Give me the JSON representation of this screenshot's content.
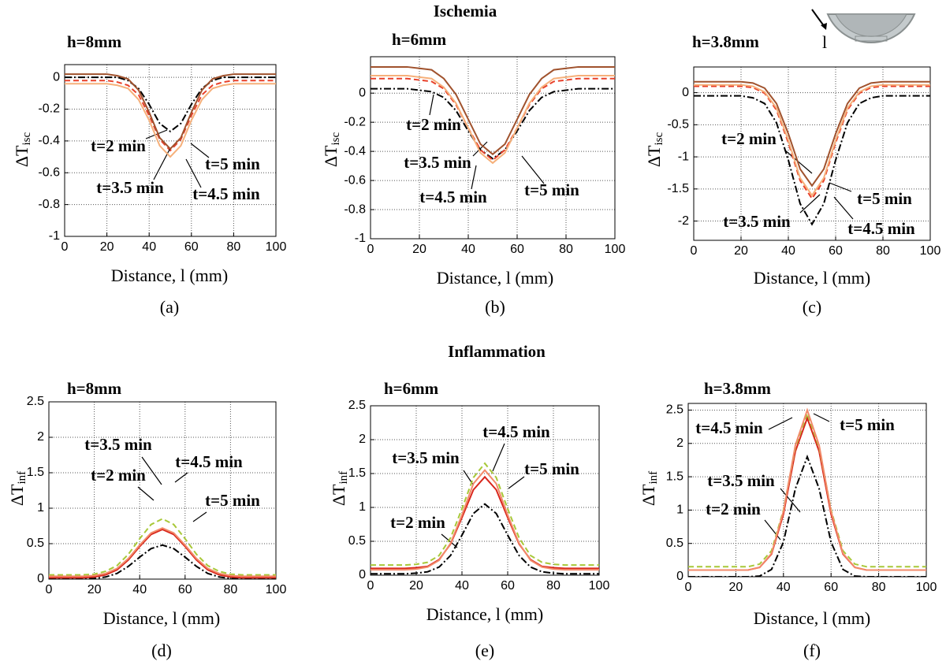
{
  "figure": {
    "titles": [
      "Ischemia",
      "Inflammation"
    ],
    "icon_label": "l"
  },
  "chart_data": [
    {
      "type": "line",
      "title": "h=8mm",
      "caption": "(a)",
      "xlabel": "Distance, l (mm)",
      "ylabel": "ΔT",
      "ylabel_subscript": "isc",
      "x": [
        0,
        5,
        10,
        15,
        20,
        25,
        30,
        35,
        40,
        45,
        50,
        55,
        60,
        65,
        70,
        75,
        80,
        85,
        90,
        95,
        100
      ],
      "xlim": [
        0,
        100
      ],
      "xticks": [
        0,
        20,
        40,
        60,
        80,
        100
      ],
      "ylim": [
        -1,
        0.08
      ],
      "yticks": [
        -1,
        -0.8,
        -0.6,
        -0.4,
        -0.2,
        0
      ],
      "grid": true,
      "series": [
        {
          "name": "t=2 min",
          "color": "#000000",
          "dash": "dashdot",
          "values": [
            0,
            0,
            0,
            0,
            0,
            0,
            -0.02,
            -0.07,
            -0.17,
            -0.29,
            -0.34,
            -0.29,
            -0.17,
            -0.07,
            -0.02,
            0,
            0,
            0,
            0,
            0,
            0
          ]
        },
        {
          "name": "t=3.5 min",
          "color": "#e8402a",
          "dash": "dashed",
          "values": [
            -0.02,
            -0.02,
            -0.02,
            -0.02,
            -0.02,
            -0.03,
            -0.05,
            -0.11,
            -0.24,
            -0.39,
            -0.46,
            -0.39,
            -0.24,
            -0.11,
            -0.05,
            -0.03,
            -0.02,
            -0.02,
            -0.02,
            -0.02,
            -0.02
          ]
        },
        {
          "name": "t=4.5 min",
          "color": "#f6b07a",
          "dash": "solid",
          "values": [
            -0.04,
            -0.04,
            -0.04,
            -0.04,
            -0.04,
            -0.05,
            -0.07,
            -0.14,
            -0.27,
            -0.43,
            -0.5,
            -0.43,
            -0.27,
            -0.14,
            -0.07,
            -0.05,
            -0.04,
            -0.04,
            -0.04,
            -0.04,
            -0.04
          ]
        },
        {
          "name": "t=5 min",
          "color": "#a0522d",
          "dash": "solid",
          "values": [
            0.02,
            0.02,
            0.02,
            0.02,
            0.02,
            0.01,
            -0.01,
            -0.08,
            -0.22,
            -0.38,
            -0.45,
            -0.38,
            -0.22,
            -0.08,
            -0.01,
            0.01,
            0.02,
            0.02,
            0.02,
            0.02,
            0.02
          ]
        }
      ]
    },
    {
      "type": "line",
      "title": "h=6mm",
      "caption": "(b)",
      "xlabel": "Distance, l (mm)",
      "ylabel": "ΔT",
      "ylabel_subscript": "isc",
      "x": [
        0,
        5,
        10,
        15,
        20,
        25,
        30,
        35,
        40,
        45,
        50,
        55,
        60,
        65,
        70,
        75,
        80,
        85,
        90,
        95,
        100
      ],
      "xlim": [
        0,
        100
      ],
      "xticks": [
        0,
        20,
        40,
        60,
        80,
        100
      ],
      "ylim": [
        -1,
        0.25
      ],
      "yticks": [
        -1,
        -0.8,
        -0.6,
        -0.4,
        -0.2,
        0
      ],
      "grid": true,
      "series": [
        {
          "name": "t=2 min",
          "color": "#000000",
          "dash": "dashdot",
          "values": [
            0.03,
            0.03,
            0.03,
            0.03,
            0.02,
            0.01,
            -0.03,
            -0.12,
            -0.26,
            -0.39,
            -0.45,
            -0.39,
            -0.26,
            -0.12,
            -0.03,
            0.01,
            0.02,
            0.03,
            0.03,
            0.03,
            0.03
          ]
        },
        {
          "name": "t=3.5 min",
          "color": "#e8402a",
          "dash": "dashed",
          "values": [
            0.1,
            0.1,
            0.1,
            0.1,
            0.09,
            0.08,
            0.03,
            -0.08,
            -0.24,
            -0.39,
            -0.46,
            -0.39,
            -0.24,
            -0.08,
            0.03,
            0.08,
            0.09,
            0.1,
            0.1,
            0.1,
            0.1
          ]
        },
        {
          "name": "t=4.5 min",
          "color": "#f6b07a",
          "dash": "solid",
          "values": [
            0.12,
            0.12,
            0.12,
            0.12,
            0.11,
            0.1,
            0.04,
            -0.07,
            -0.24,
            -0.41,
            -0.48,
            -0.41,
            -0.24,
            -0.07,
            0.04,
            0.1,
            0.11,
            0.12,
            0.12,
            0.12,
            0.12
          ]
        },
        {
          "name": "t=5 min",
          "color": "#a0522d",
          "dash": "solid",
          "values": [
            0.18,
            0.18,
            0.18,
            0.18,
            0.17,
            0.16,
            0.1,
            -0.01,
            -0.18,
            -0.35,
            -0.42,
            -0.35,
            -0.18,
            -0.01,
            0.1,
            0.16,
            0.17,
            0.18,
            0.18,
            0.18,
            0.18
          ]
        }
      ]
    },
    {
      "type": "line",
      "title": "h=3.8mm",
      "caption": "(c)",
      "xlabel": "Distance, l (mm)",
      "ylabel": "ΔT",
      "ylabel_subscript": "isc",
      "x": [
        0,
        5,
        10,
        15,
        20,
        25,
        30,
        35,
        40,
        45,
        50,
        55,
        60,
        65,
        70,
        75,
        80,
        85,
        90,
        95,
        100
      ],
      "xlim": [
        0,
        100
      ],
      "xticks": [
        0,
        20,
        40,
        60,
        80,
        100
      ],
      "ylim": [
        -2.3,
        0.4
      ],
      "yticks": [
        -2,
        -1.5,
        -1,
        -0.5,
        0
      ],
      "grid": true,
      "series": [
        {
          "name": "t=2 min",
          "color": "#000000",
          "dash": "dashdot",
          "values": [
            -0.05,
            -0.05,
            -0.05,
            -0.05,
            -0.05,
            -0.08,
            -0.17,
            -0.47,
            -1.05,
            -1.73,
            -2.05,
            -1.73,
            -1.05,
            -0.47,
            -0.17,
            -0.08,
            -0.05,
            -0.05,
            -0.05,
            -0.05,
            -0.05
          ]
        },
        {
          "name": "t=3.5 min",
          "color": "#e8402a",
          "dash": "dashed",
          "values": [
            0.1,
            0.1,
            0.1,
            0.1,
            0.1,
            0.08,
            -0.01,
            -0.27,
            -0.78,
            -1.37,
            -1.65,
            -1.37,
            -0.78,
            -0.27,
            -0.01,
            0.08,
            0.1,
            0.1,
            0.1,
            0.1,
            0.1
          ]
        },
        {
          "name": "t=4.5 min",
          "color": "#f6b07a",
          "dash": "solid",
          "values": [
            0.12,
            0.12,
            0.12,
            0.12,
            0.12,
            0.1,
            0.01,
            -0.24,
            -0.74,
            -1.33,
            -1.6,
            -1.33,
            -0.74,
            -0.24,
            0.01,
            0.1,
            0.12,
            0.12,
            0.12,
            0.12,
            0.12
          ]
        },
        {
          "name": "t=5 min",
          "color": "#a0522d",
          "dash": "solid",
          "values": [
            0.17,
            0.17,
            0.17,
            0.17,
            0.17,
            0.15,
            0.07,
            -0.17,
            -0.64,
            -1.19,
            -1.45,
            -1.19,
            -0.64,
            -0.17,
            0.07,
            0.15,
            0.17,
            0.17,
            0.17,
            0.17,
            0.17
          ]
        }
      ]
    },
    {
      "type": "line",
      "title": "h=8mm",
      "caption": "(d)",
      "xlabel": "Distance, l (mm)",
      "ylabel": "ΔT",
      "ylabel_subscript": "inf",
      "x": [
        0,
        5,
        10,
        15,
        20,
        25,
        30,
        35,
        40,
        45,
        50,
        55,
        60,
        65,
        70,
        75,
        80,
        85,
        90,
        95,
        100
      ],
      "xlim": [
        0,
        100
      ],
      "xticks": [
        0,
        20,
        40,
        60,
        80,
        100
      ],
      "ylim": [
        0,
        2.5
      ],
      "yticks": [
        0,
        0.5,
        1,
        1.5,
        2,
        2.5
      ],
      "grid": true,
      "series": [
        {
          "name": "t=2 min",
          "color": "#000000",
          "dash": "dashdot",
          "values": [
            0,
            0,
            0,
            0,
            0.01,
            0.03,
            0.08,
            0.18,
            0.31,
            0.43,
            0.48,
            0.43,
            0.31,
            0.18,
            0.08,
            0.03,
            0.01,
            0,
            0,
            0,
            0
          ]
        },
        {
          "name": "t=3.5 min",
          "color": "#d8261c",
          "dash": "solid",
          "values": [
            0.02,
            0.02,
            0.02,
            0.02,
            0.03,
            0.06,
            0.13,
            0.27,
            0.46,
            0.63,
            0.7,
            0.63,
            0.46,
            0.27,
            0.13,
            0.06,
            0.03,
            0.02,
            0.02,
            0.02,
            0.02
          ]
        },
        {
          "name": "t=4.5 min",
          "color": "#a8c838",
          "dash": "dashed",
          "values": [
            0.06,
            0.06,
            0.06,
            0.06,
            0.07,
            0.11,
            0.19,
            0.35,
            0.57,
            0.77,
            0.85,
            0.77,
            0.57,
            0.35,
            0.19,
            0.11,
            0.07,
            0.06,
            0.06,
            0.06,
            0.06
          ]
        },
        {
          "name": "t=5 min",
          "color": "#f28a6a",
          "dash": "solid",
          "values": [
            0.04,
            0.04,
            0.04,
            0.04,
            0.05,
            0.08,
            0.15,
            0.29,
            0.48,
            0.65,
            0.72,
            0.65,
            0.48,
            0.29,
            0.15,
            0.08,
            0.05,
            0.04,
            0.04,
            0.04,
            0.04
          ]
        }
      ]
    },
    {
      "type": "line",
      "title": "h=6mm",
      "caption": "(e)",
      "xlabel": "Distance, l (mm)",
      "ylabel": "ΔT",
      "ylabel_subscript": "inf",
      "x": [
        0,
        5,
        10,
        15,
        20,
        25,
        30,
        35,
        40,
        45,
        50,
        55,
        60,
        65,
        70,
        75,
        80,
        85,
        90,
        95,
        100
      ],
      "xlim": [
        0,
        100
      ],
      "xticks": [
        0,
        20,
        40,
        60,
        80,
        100
      ],
      "ylim": [
        0,
        2.5
      ],
      "yticks": [
        0,
        0.5,
        1,
        1.5,
        2,
        2.5
      ],
      "grid": true,
      "series": [
        {
          "name": "t=2 min",
          "color": "#000000",
          "dash": "dashdot",
          "values": [
            0.02,
            0.02,
            0.02,
            0.02,
            0.03,
            0.05,
            0.12,
            0.29,
            0.59,
            0.91,
            1.05,
            0.91,
            0.59,
            0.29,
            0.12,
            0.05,
            0.03,
            0.02,
            0.02,
            0.02,
            0.02
          ]
        },
        {
          "name": "t=3.5 min",
          "color": "#d8261c",
          "dash": "solid",
          "values": [
            0.1,
            0.1,
            0.1,
            0.1,
            0.11,
            0.13,
            0.23,
            0.46,
            0.85,
            1.26,
            1.45,
            1.26,
            0.85,
            0.46,
            0.23,
            0.13,
            0.11,
            0.1,
            0.1,
            0.1,
            0.1
          ]
        },
        {
          "name": "t=4.5 min",
          "color": "#a8c838",
          "dash": "dashed",
          "values": [
            0.15,
            0.15,
            0.15,
            0.15,
            0.16,
            0.19,
            0.29,
            0.55,
            0.98,
            1.44,
            1.65,
            1.44,
            0.98,
            0.55,
            0.29,
            0.19,
            0.16,
            0.15,
            0.15,
            0.15,
            0.15
          ]
        },
        {
          "name": "t=5 min",
          "color": "#f28a6a",
          "dash": "solid",
          "values": [
            0.08,
            0.08,
            0.08,
            0.08,
            0.09,
            0.12,
            0.22,
            0.47,
            0.89,
            1.35,
            1.55,
            1.35,
            0.89,
            0.47,
            0.22,
            0.12,
            0.09,
            0.08,
            0.08,
            0.08,
            0.08
          ]
        }
      ]
    },
    {
      "type": "line",
      "title": "h=3.8mm",
      "caption": "(f)",
      "xlabel": "Distance, l (mm)",
      "ylabel": "ΔT",
      "ylabel_subscript": "inf",
      "x": [
        0,
        5,
        10,
        15,
        20,
        25,
        30,
        35,
        40,
        45,
        50,
        55,
        60,
        65,
        70,
        75,
        80,
        85,
        90,
        95,
        100
      ],
      "xlim": [
        0,
        100
      ],
      "xticks": [
        0,
        20,
        40,
        60,
        80,
        100
      ],
      "ylim": [
        0,
        2.6
      ],
      "yticks": [
        0,
        0.5,
        1,
        1.5,
        2,
        2.5
      ],
      "grid": true,
      "series": [
        {
          "name": "t=2 min",
          "color": "#000000",
          "dash": "dashdot",
          "values": [
            0,
            0,
            0,
            0,
            0,
            0,
            0.01,
            0.11,
            0.52,
            1.32,
            1.8,
            1.32,
            0.52,
            0.11,
            0.01,
            0,
            0,
            0,
            0,
            0,
            0
          ]
        },
        {
          "name": "t=3.5 min",
          "color": "#d8261c",
          "dash": "solid",
          "values": [
            0.1,
            0.1,
            0.1,
            0.1,
            0.1,
            0.1,
            0.14,
            0.34,
            0.94,
            1.88,
            2.38,
            1.88,
            0.94,
            0.34,
            0.14,
            0.1,
            0.1,
            0.1,
            0.1,
            0.1,
            0.1
          ]
        },
        {
          "name": "t=4.5 min",
          "color": "#a8c838",
          "dash": "dashed",
          "values": [
            0.15,
            0.15,
            0.15,
            0.15,
            0.15,
            0.15,
            0.19,
            0.39,
            1,
            1.94,
            2.45,
            1.94,
            1,
            0.39,
            0.19,
            0.15,
            0.15,
            0.15,
            0.15,
            0.15,
            0.15
          ]
        },
        {
          "name": "t=5 min",
          "color": "#f28a6a",
          "dash": "solid",
          "values": [
            0.1,
            0.1,
            0.1,
            0.1,
            0.1,
            0.1,
            0.14,
            0.35,
            0.98,
            1.97,
            2.5,
            1.97,
            0.98,
            0.35,
            0.14,
            0.1,
            0.1,
            0.1,
            0.1,
            0.1,
            0.1
          ]
        }
      ]
    }
  ]
}
